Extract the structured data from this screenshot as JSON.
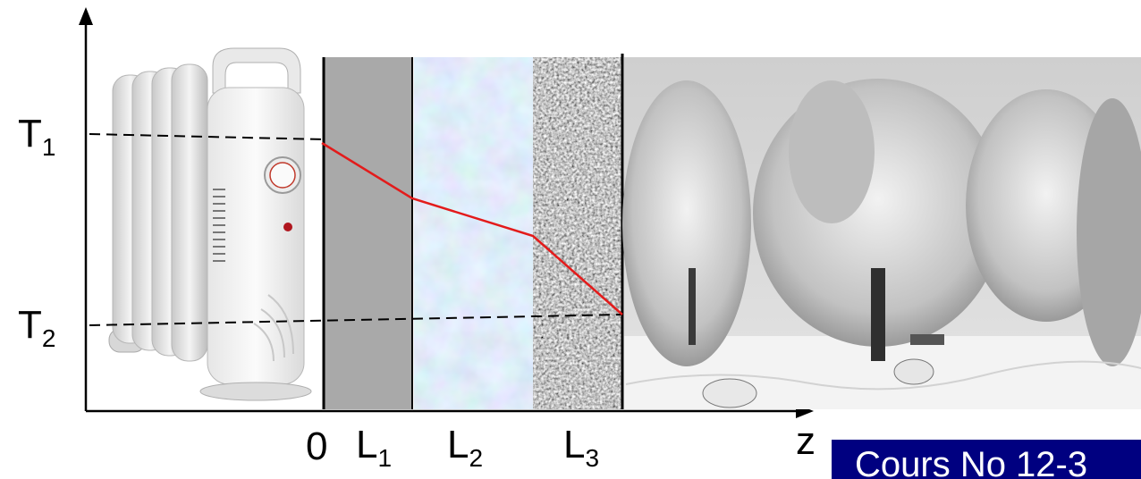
{
  "labels": {
    "t1": {
      "main": "T",
      "sub": "1"
    },
    "t2": {
      "main": "T",
      "sub": "2"
    },
    "zero": "0",
    "l1": {
      "main": "L",
      "sub": "1"
    },
    "l2": {
      "main": "L",
      "sub": "2"
    },
    "l3": {
      "main": "L",
      "sub": "3"
    },
    "z": "z"
  },
  "banner": {
    "text": "Cours No 12-3"
  },
  "colors": {
    "wall": "#a9a9a9",
    "profile_line": "#e31b1b",
    "banner_bg": "#000080",
    "axis": "#000000"
  }
}
